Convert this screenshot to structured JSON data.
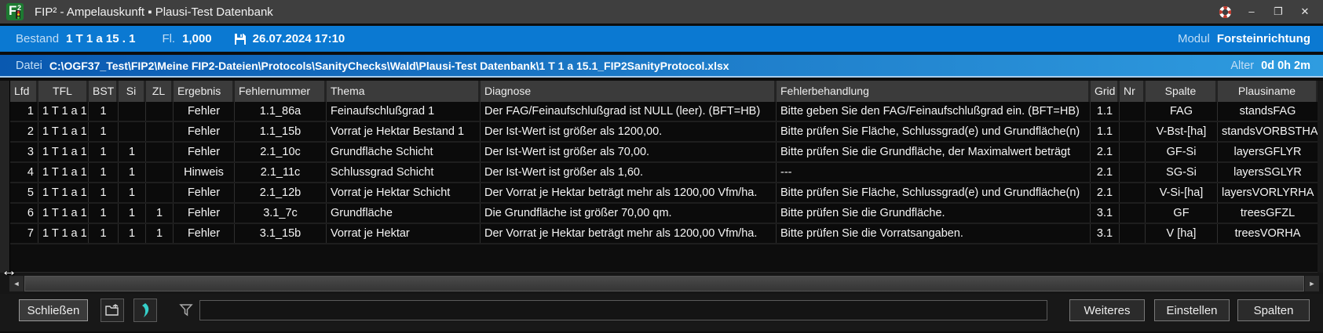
{
  "window": {
    "title": "FIP² - Ampelauskunft ▪ Plausi-Test Datenbank",
    "logo": {
      "letter": "F",
      "sup": "2"
    },
    "controls": {
      "minimize": "–",
      "maximize": "❐",
      "close": "✕"
    }
  },
  "info_bar": {
    "bestand_label": "Bestand",
    "bestand_value": "1 T 1 a 15 . 1",
    "fl_label": "Fl.",
    "fl_value": "1,000",
    "saved_datetime": "26.07.2024 17:10",
    "modul_label": "Modul",
    "modul_value": "Forsteinrichtung"
  },
  "file_bar": {
    "datei_label": "Datei",
    "path": "C:\\OGF37_Test\\FIP2\\Meine FIP2-Dateien\\Protocols\\SanityChecks\\Wald\\Plausi-Test Datenbank\\1 T 1 a 15.1_FIP2SanityProtocol.xlsx",
    "alter_label": "Alter",
    "alter_value": "0d 0h 2m"
  },
  "table": {
    "columns": [
      {
        "id": "lfd",
        "label": "Lfd"
      },
      {
        "id": "tfl",
        "label": "TFL"
      },
      {
        "id": "bst",
        "label": "BST"
      },
      {
        "id": "si",
        "label": "Si"
      },
      {
        "id": "zl",
        "label": "ZL"
      },
      {
        "id": "ergebnis",
        "label": "Ergebnis"
      },
      {
        "id": "fehlernummer",
        "label": "Fehlernummer"
      },
      {
        "id": "thema",
        "label": "Thema"
      },
      {
        "id": "diagnose",
        "label": "Diagnose"
      },
      {
        "id": "fehlerbehandlung",
        "label": "Fehlerbehandlung"
      },
      {
        "id": "grid",
        "label": "Grid"
      },
      {
        "id": "nr",
        "label": "Nr"
      },
      {
        "id": "spalte",
        "label": "Spalte"
      },
      {
        "id": "plausiname",
        "label": "Plausiname"
      }
    ],
    "rows": [
      [
        "1",
        "1 T 1 a 1",
        "1",
        "",
        "",
        "Fehler",
        "1.1_86a",
        "Feinaufschlußgrad 1",
        "Der FAG/Feinaufschlußgrad ist NULL (leer). (BFT=HB)",
        "Bitte geben Sie den FAG/Feinaufschlußgrad ein. (BFT=HB)",
        "1.1",
        "",
        "FAG",
        "standsFAG"
      ],
      [
        "2",
        "1 T 1 a 1",
        "1",
        "",
        "",
        "Fehler",
        "1.1_15b",
        "Vorrat je Hektar Bestand 1",
        "Der Ist-Wert ist größer als 1200,00.",
        "Bitte prüfen Sie Fläche, Schlussgrad(e) und Grundfläche(n)",
        "1.1",
        "",
        "V-Bst-[ha]",
        "standsVORBSTHA"
      ],
      [
        "3",
        "1 T 1 a 1",
        "1",
        "1",
        "",
        "Fehler",
        "2.1_10c",
        "Grundfläche Schicht",
        "Der Ist-Wert ist größer als 70,00.",
        "Bitte prüfen Sie die Grundfläche, der Maximalwert beträgt",
        "2.1",
        "",
        "GF-Si",
        "layersGFLYR"
      ],
      [
        "4",
        "1 T 1 a 1",
        "1",
        "1",
        "",
        "Hinweis",
        "2.1_11c",
        "Schlussgrad Schicht",
        "Der Ist-Wert ist größer als 1,60.",
        "---",
        "2.1",
        "",
        "SG-Si",
        "layersSGLYR"
      ],
      [
        "5",
        "1 T 1 a 1",
        "1",
        "1",
        "",
        "Fehler",
        "2.1_12b",
        "Vorrat je Hektar Schicht",
        "Der Vorrat je Hektar beträgt mehr als 1200,00 Vfm/ha.",
        "Bitte prüfen Sie Fläche, Schlussgrad(e) und Grundfläche(n)",
        "2.1",
        "",
        "V-Si-[ha]",
        "layersVORLYRHA"
      ],
      [
        "6",
        "1 T 1 a 1",
        "1",
        "1",
        "1",
        "Fehler",
        "3.1_7c",
        "Grundfläche",
        "Die Grundfläche ist größer 70,00 qm.",
        "Bitte prüfen Sie die Grundfläche.",
        "3.1",
        "",
        "GF",
        "treesGFZL"
      ],
      [
        "7",
        "1 T 1 a 1",
        "1",
        "1",
        "1",
        "Fehler",
        "3.1_15b",
        "Vorrat je Hektar",
        "Der Vorrat je Hektar beträgt mehr als 1200,00 Vfm/ha.",
        "Bitte prüfen Sie die Vorratsangaben.",
        "3.1",
        "",
        "V [ha]",
        "treesVORHA"
      ]
    ]
  },
  "scrollbar": {
    "left_arrow": "◄",
    "right_arrow": "►"
  },
  "cursor": {
    "resize_glyph": "↔"
  },
  "footer": {
    "close_label": "Schließen",
    "weiteres_label": "Weiteres",
    "einstellen_label": "Einstellen",
    "spalten_label": "Spalten",
    "filter_value": ""
  },
  "colors": {
    "accent_blue": "#0b79d2",
    "title_gray": "#3f3f3f",
    "logo_green": "#1d7a31",
    "teal_icon": "#35cfc9",
    "ampel_red": "#e03a2f",
    "ampel_yellow": "#f3c411",
    "ampel_green": "#3fba3f"
  }
}
